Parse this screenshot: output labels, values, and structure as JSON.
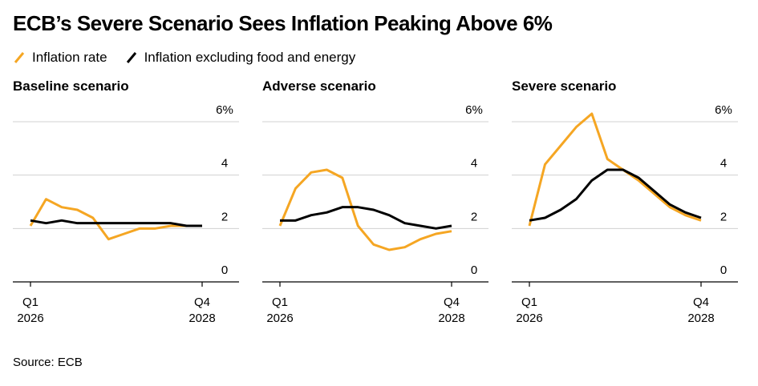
{
  "title": "ECB’s Severe Scenario Sees Inflation Peaking Above 6%",
  "source": "Source: ECB",
  "colors": {
    "inflation": "#f5a623",
    "core": "#000000",
    "grid": "#d0d0d0",
    "axis": "#000000"
  },
  "chart_data": [
    {
      "type": "line",
      "title": "Baseline scenario",
      "ylim": [
        0,
        6
      ],
      "yticks": [
        0,
        2,
        4,
        6
      ],
      "ytick_labels": [
        "0",
        "2",
        "4",
        "6%"
      ],
      "xtick_labels": [
        {
          "line1": "Q1",
          "line2": "2026"
        },
        {
          "line1": "Q4",
          "line2": "2028"
        }
      ],
      "x": [
        1,
        2,
        3,
        4,
        5,
        6,
        7,
        8,
        9,
        10,
        11,
        12
      ],
      "series": [
        {
          "name": "Inflation rate",
          "color": "#f5a623",
          "values": [
            2.1,
            3.1,
            2.8,
            2.7,
            2.4,
            1.6,
            1.8,
            2.0,
            2.0,
            2.1,
            2.1,
            2.1
          ]
        },
        {
          "name": "Inflation excluding food and energy",
          "color": "#000000",
          "values": [
            2.3,
            2.2,
            2.3,
            2.2,
            2.2,
            2.2,
            2.2,
            2.2,
            2.2,
            2.2,
            2.1,
            2.1
          ]
        }
      ]
    },
    {
      "type": "line",
      "title": "Adverse scenario",
      "ylim": [
        0,
        6
      ],
      "yticks": [
        0,
        2,
        4,
        6
      ],
      "ytick_labels": [
        "0",
        "2",
        "4",
        "6%"
      ],
      "xtick_labels": [
        {
          "line1": "Q1",
          "line2": "2026"
        },
        {
          "line1": "Q4",
          "line2": "2028"
        }
      ],
      "x": [
        1,
        2,
        3,
        4,
        5,
        6,
        7,
        8,
        9,
        10,
        11,
        12
      ],
      "series": [
        {
          "name": "Inflation rate",
          "color": "#f5a623",
          "values": [
            2.1,
            3.5,
            4.1,
            4.2,
            3.9,
            2.1,
            1.4,
            1.2,
            1.3,
            1.6,
            1.8,
            1.9
          ]
        },
        {
          "name": "Inflation excluding food and energy",
          "color": "#000000",
          "values": [
            2.3,
            2.3,
            2.5,
            2.6,
            2.8,
            2.8,
            2.7,
            2.5,
            2.2,
            2.1,
            2.0,
            2.1
          ]
        }
      ]
    },
    {
      "type": "line",
      "title": "Severe scenario",
      "ylim": [
        0,
        6
      ],
      "yticks": [
        0,
        2,
        4,
        6
      ],
      "ytick_labels": [
        "0",
        "2",
        "4",
        "6%"
      ],
      "xtick_labels": [
        {
          "line1": "Q1",
          "line2": "2026"
        },
        {
          "line1": "Q4",
          "line2": "2028"
        }
      ],
      "x": [
        1,
        2,
        3,
        4,
        5,
        6,
        7,
        8,
        9,
        10,
        11,
        12
      ],
      "series": [
        {
          "name": "Inflation rate",
          "color": "#f5a623",
          "values": [
            2.1,
            4.4,
            5.1,
            5.8,
            6.3,
            4.6,
            4.2,
            3.8,
            3.3,
            2.8,
            2.5,
            2.3
          ]
        },
        {
          "name": "Inflation excluding food and energy",
          "color": "#000000",
          "values": [
            2.3,
            2.4,
            2.7,
            3.1,
            3.8,
            4.2,
            4.2,
            3.9,
            3.4,
            2.9,
            2.6,
            2.4
          ]
        }
      ]
    }
  ],
  "legend": [
    {
      "label": "Inflation rate",
      "color": "#f5a623"
    },
    {
      "label": "Inflation excluding food and energy",
      "color": "#000000"
    }
  ]
}
